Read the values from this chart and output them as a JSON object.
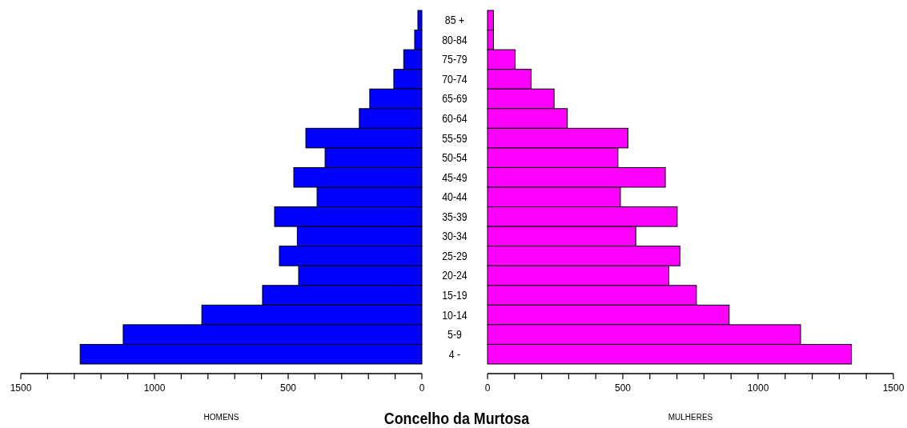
{
  "chart_data": [
    {
      "type": "bar",
      "orientation": "horizontal",
      "xlabel": "HOMENS",
      "title": "Concelho da Murtosa",
      "categories": [
        "85 +",
        "80-84",
        "75-79",
        "70-74",
        "65-69",
        "60-64",
        "55-59",
        "50-54",
        "45-49",
        "40-44",
        "35-39",
        "30-34",
        "25-29",
        "20-24",
        "15-19",
        "10-14",
        "5-9",
        "4 -"
      ],
      "series": [
        {
          "color": "#0000ff",
          "values": [
            15,
            27,
            68,
            105,
            195,
            234,
            434,
            362,
            479,
            392,
            551,
            466,
            533,
            461,
            596,
            823,
            1117,
            1278
          ]
        }
      ],
      "xlim": [
        1500,
        0
      ],
      "xticks": [
        1500,
        {
          "value": 1400,
          "label": null
        },
        {
          "value": 1300,
          "label": null
        },
        {
          "value": 1200,
          "label": null
        },
        {
          "value": 1100,
          "label": null
        },
        1000,
        {
          "value": 900,
          "label": null
        },
        {
          "value": 800,
          "label": null
        },
        {
          "value": 700,
          "label": null
        },
        {
          "value": 600,
          "label": null
        },
        500,
        {
          "value": 400,
          "label": null
        },
        {
          "value": 300,
          "label": null
        },
        {
          "value": 200,
          "label": null
        },
        {
          "value": 100,
          "label": null
        },
        0
      ]
    },
    {
      "type": "bar",
      "orientation": "horizontal",
      "xlabel": "MULHERES",
      "tick_labels": "x",
      "categories": [
        null,
        null,
        null,
        null,
        null,
        null,
        null,
        null,
        null,
        null,
        null,
        null,
        null,
        null,
        null,
        null,
        null,
        null
      ],
      "series": [
        {
          "color": "#ff00ff",
          "values": [
            22,
            22,
            102,
            161,
            246,
            295,
            519,
            482,
            657,
            491,
            701,
            548,
            711,
            670,
            772,
            893,
            1157,
            1345
          ]
        }
      ],
      "xlim": [
        0,
        1500
      ],
      "xticks": [
        0,
        {
          "value": 100,
          "label": null
        },
        {
          "value": 200,
          "label": null
        },
        {
          "value": 300,
          "label": null
        },
        {
          "value": 400,
          "label": null
        },
        500,
        {
          "value": 600,
          "label": null
        },
        {
          "value": 700,
          "label": null
        },
        {
          "value": 800,
          "label": null
        },
        {
          "value": 900,
          "label": null
        },
        1000,
        {
          "value": 1100,
          "label": null
        },
        {
          "value": 1200,
          "label": null
        },
        {
          "value": 1300,
          "label": null
        },
        {
          "value": 1400,
          "label": null
        },
        1500
      ]
    }
  ]
}
